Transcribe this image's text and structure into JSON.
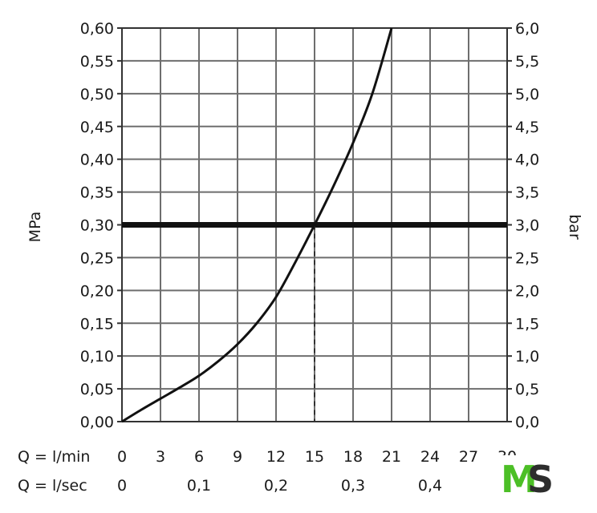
{
  "chart_data": {
    "type": "line",
    "title": "",
    "y_left": {
      "label": "MPa",
      "ticks": [
        "0,00",
        "0,05",
        "0,10",
        "0,15",
        "0,20",
        "0,25",
        "0,30",
        "0,35",
        "0,40",
        "0,45",
        "0,50",
        "0,55",
        "0,60"
      ],
      "range": [
        0,
        0.6
      ]
    },
    "y_right": {
      "label": "bar",
      "ticks": [
        "0,0",
        "0,5",
        "1,0",
        "1,5",
        "2,0",
        "2,5",
        "3,0",
        "3,5",
        "4,0",
        "4,5",
        "5,0",
        "5,5",
        "6,0"
      ],
      "range": [
        0,
        6.0
      ]
    },
    "x_lmin": {
      "label": "Q = l/min",
      "ticks": [
        "0",
        "3",
        "6",
        "9",
        "12",
        "15",
        "18",
        "21",
        "24",
        "27",
        "30"
      ],
      "range": [
        0,
        30
      ]
    },
    "x_lsec": {
      "label": "Q = l/sec",
      "ticks": [
        {
          "value": 0,
          "text": "0"
        },
        {
          "value": 0.1,
          "text": "0,1"
        },
        {
          "value": 0.2,
          "text": "0,2"
        },
        {
          "value": 0.3,
          "text": "0,3"
        },
        {
          "value": 0.4,
          "text": "0,4"
        }
      ]
    },
    "grid": true,
    "series": [
      {
        "x": [
          0,
          1.5,
          3,
          4.5,
          6,
          7.5,
          9,
          10.5,
          12,
          13.5,
          15,
          16.5,
          18,
          19.5,
          21
        ],
        "y": [
          0,
          0.018,
          0.035,
          0.052,
          0.07,
          0.092,
          0.118,
          0.15,
          0.19,
          0.243,
          0.3,
          0.36,
          0.425,
          0.5,
          0.6
        ]
      }
    ],
    "reference_line": {
      "y": 0.3
    },
    "reference_x": {
      "x": 15
    }
  },
  "logo": {
    "text_m": "M",
    "text_s": "S"
  }
}
